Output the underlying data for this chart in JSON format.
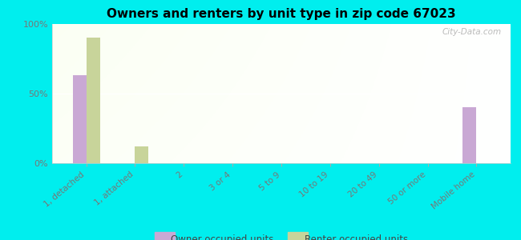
{
  "title": "Owners and renters by unit type in zip code 67023",
  "categories": [
    "1, detached",
    "1, attached",
    "2",
    "3 or 4",
    "5 to 9",
    "10 to 19",
    "20 to 49",
    "50 or more",
    "Mobile home"
  ],
  "owner_values": [
    63,
    0,
    0,
    0,
    0,
    0,
    0,
    0,
    40
  ],
  "renter_values": [
    90,
    12,
    0,
    0,
    0,
    0,
    0,
    0,
    0
  ],
  "owner_color": "#c9a8d4",
  "renter_color": "#c8d49a",
  "bg_top_left": "#d4e8b0",
  "bg_top_right": "#f0f8e0",
  "outer_background": "#00eeee",
  "ylim": [
    0,
    100
  ],
  "yticks": [
    0,
    50,
    100
  ],
  "ytick_labels": [
    "0%",
    "50%",
    "100%"
  ],
  "bar_width": 0.28,
  "legend_owner": "Owner occupied units",
  "legend_renter": "Renter occupied units",
  "watermark": "City-Data.com"
}
